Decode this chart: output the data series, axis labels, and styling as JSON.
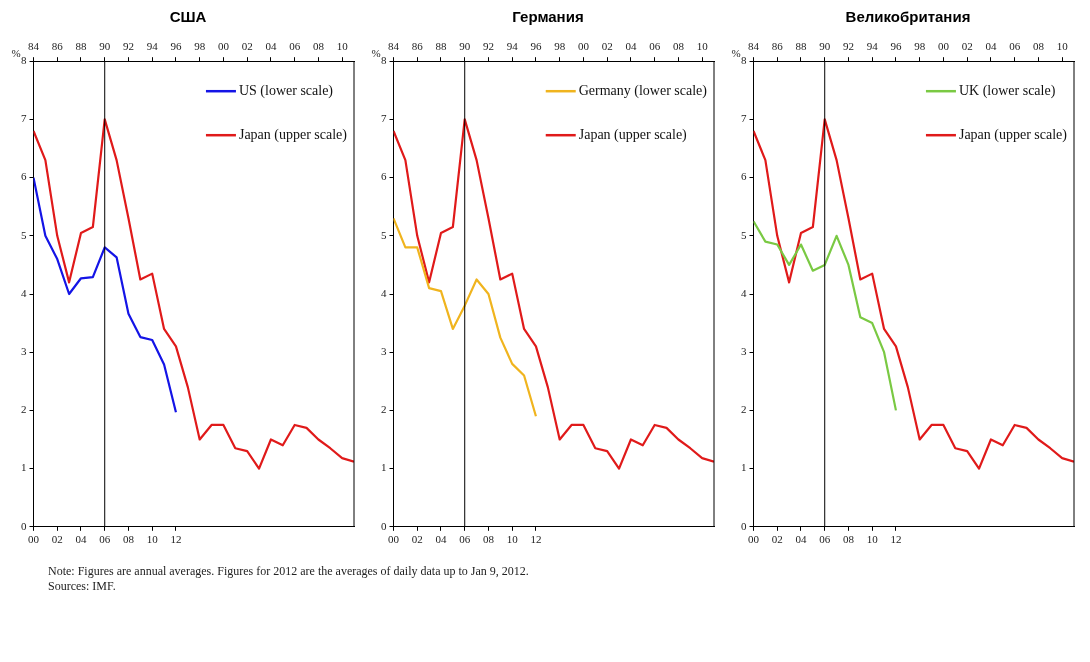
{
  "chart_data": [
    {
      "type": "line",
      "title": "США",
      "ylabel": "%",
      "legend": "top right",
      "ylim": [
        0,
        8
      ],
      "yticks": [
        0,
        1,
        2,
        3,
        4,
        5,
        6,
        7,
        8
      ],
      "xlim": [
        2000,
        2027
      ],
      "xticks": [
        {
          "value": 2000,
          "label": "00"
        },
        {
          "value": 2002,
          "label": "02"
        },
        {
          "value": 2004,
          "label": "04"
        },
        {
          "value": 2006,
          "label": "06"
        },
        {
          "value": 2008,
          "label": "08"
        },
        {
          "value": 2010,
          "label": "10"
        },
        {
          "value": 2012,
          "label": "12"
        }
      ],
      "x2lim": [
        1984,
        2011
      ],
      "x2ticks": [
        {
          "value": 1984,
          "label": "84"
        },
        {
          "value": 1986,
          "label": "86"
        },
        {
          "value": 1988,
          "label": "88"
        },
        {
          "value": 1990,
          "label": "90"
        },
        {
          "value": 1992,
          "label": "92"
        },
        {
          "value": 1994,
          "label": "94"
        },
        {
          "value": 1996,
          "label": "96"
        },
        {
          "value": 1998,
          "label": "98"
        },
        {
          "value": 2000,
          "label": "00"
        },
        {
          "value": 2002,
          "label": "02"
        },
        {
          "value": 2004,
          "label": "04"
        },
        {
          "value": 2006,
          "label": "06"
        },
        {
          "value": 2008,
          "label": "08"
        },
        {
          "value": 2010,
          "label": "10"
        }
      ],
      "ref_lines": [
        {
          "axis": "x",
          "value": 2006,
          "color": "#000000"
        }
      ],
      "annotations": [
        "Note: Figures are annual averages. Figures for 2012 are the averages of daily data up to Jan 9, 2012.",
        "Sources: IMF."
      ],
      "series": [
        {
          "name": "US (lower scale)",
          "color": "#1414e6",
          "x": [
            2000,
            2001,
            2002,
            2003,
            2004,
            2005,
            2006,
            2007,
            2008,
            2009,
            2010,
            2011,
            2012
          ],
          "values": [
            6.0,
            5.0,
            4.6,
            4.0,
            4.27,
            4.29,
            4.8,
            4.63,
            3.66,
            3.26,
            3.21,
            2.79,
            1.97
          ]
        },
        {
          "name": "Japan (upper scale)",
          "color": "#e01a1a",
          "axis": "x2",
          "x": [
            1984,
            1985,
            1986,
            1987,
            1988,
            1989,
            1990,
            1991,
            1992,
            1993,
            1994,
            1995,
            1996,
            1997,
            1998,
            1999,
            2000,
            2001,
            2002,
            2003,
            2004,
            2005,
            2006,
            2007,
            2008,
            2009,
            2010,
            2011
          ],
          "values": [
            6.8,
            6.3,
            5.0,
            4.2,
            5.05,
            5.15,
            7.0,
            6.3,
            5.3,
            4.25,
            4.35,
            3.4,
            3.1,
            2.4,
            1.5,
            1.75,
            1.75,
            1.35,
            1.3,
            1.0,
            1.5,
            1.4,
            1.75,
            1.7,
            1.5,
            1.35,
            1.18,
            1.12
          ]
        }
      ]
    },
    {
      "type": "line",
      "title": "Германия",
      "ylabel": "%",
      "legend": "top right",
      "ylim": [
        0,
        8
      ],
      "yticks": [
        0,
        1,
        2,
        3,
        4,
        5,
        6,
        7,
        8
      ],
      "xlim": [
        2000,
        2027
      ],
      "xticks": [
        {
          "value": 2000,
          "label": "00"
        },
        {
          "value": 2002,
          "label": "02"
        },
        {
          "value": 2004,
          "label": "04"
        },
        {
          "value": 2006,
          "label": "06"
        },
        {
          "value": 2008,
          "label": "08"
        },
        {
          "value": 2010,
          "label": "10"
        },
        {
          "value": 2012,
          "label": "12"
        }
      ],
      "x2lim": [
        1984,
        2011
      ],
      "x2ticks": [
        {
          "value": 1984,
          "label": "84"
        },
        {
          "value": 1986,
          "label": "86"
        },
        {
          "value": 1988,
          "label": "88"
        },
        {
          "value": 1990,
          "label": "90"
        },
        {
          "value": 1992,
          "label": "92"
        },
        {
          "value": 1994,
          "label": "94"
        },
        {
          "value": 1996,
          "label": "96"
        },
        {
          "value": 1998,
          "label": "98"
        },
        {
          "value": 2000,
          "label": "00"
        },
        {
          "value": 2002,
          "label": "02"
        },
        {
          "value": 2004,
          "label": "04"
        },
        {
          "value": 2006,
          "label": "06"
        },
        {
          "value": 2008,
          "label": "08"
        },
        {
          "value": 2010,
          "label": "10"
        }
      ],
      "ref_lines": [
        {
          "axis": "x",
          "value": 2006,
          "color": "#000000"
        }
      ],
      "series": [
        {
          "name": "Germany (lower scale)",
          "color": "#f0b41e",
          "x": [
            2000,
            2001,
            2002,
            2003,
            2004,
            2005,
            2006,
            2007,
            2008,
            2009,
            2010,
            2011,
            2012
          ],
          "values": [
            5.3,
            4.8,
            4.8,
            4.1,
            4.05,
            3.4,
            3.8,
            4.25,
            4.0,
            3.25,
            2.8,
            2.6,
            1.9
          ]
        },
        {
          "name": "Japan (upper scale)",
          "color": "#e01a1a",
          "axis": "x2",
          "x": [
            1984,
            1985,
            1986,
            1987,
            1988,
            1989,
            1990,
            1991,
            1992,
            1993,
            1994,
            1995,
            1996,
            1997,
            1998,
            1999,
            2000,
            2001,
            2002,
            2003,
            2004,
            2005,
            2006,
            2007,
            2008,
            2009,
            2010,
            2011
          ],
          "values": [
            6.8,
            6.3,
            5.0,
            4.2,
            5.05,
            5.15,
            7.0,
            6.3,
            5.3,
            4.25,
            4.35,
            3.4,
            3.1,
            2.4,
            1.5,
            1.75,
            1.75,
            1.35,
            1.3,
            1.0,
            1.5,
            1.4,
            1.75,
            1.7,
            1.5,
            1.35,
            1.18,
            1.12
          ]
        }
      ]
    },
    {
      "type": "line",
      "title": "Великобритания",
      "ylabel": "%",
      "legend": "top right",
      "ylim": [
        0,
        8
      ],
      "yticks": [
        0,
        1,
        2,
        3,
        4,
        5,
        6,
        7,
        8
      ],
      "xlim": [
        2000,
        2027
      ],
      "xticks": [
        {
          "value": 2000,
          "label": "00"
        },
        {
          "value": 2002,
          "label": "02"
        },
        {
          "value": 2004,
          "label": "04"
        },
        {
          "value": 2006,
          "label": "06"
        },
        {
          "value": 2008,
          "label": "08"
        },
        {
          "value": 2010,
          "label": "10"
        },
        {
          "value": 2012,
          "label": "12"
        }
      ],
      "x2lim": [
        1984,
        2011
      ],
      "x2ticks": [
        {
          "value": 1984,
          "label": "84"
        },
        {
          "value": 1986,
          "label": "86"
        },
        {
          "value": 1988,
          "label": "88"
        },
        {
          "value": 1990,
          "label": "90"
        },
        {
          "value": 1992,
          "label": "92"
        },
        {
          "value": 1994,
          "label": "94"
        },
        {
          "value": 1996,
          "label": "96"
        },
        {
          "value": 1998,
          "label": "98"
        },
        {
          "value": 2000,
          "label": "00"
        },
        {
          "value": 2002,
          "label": "02"
        },
        {
          "value": 2004,
          "label": "04"
        },
        {
          "value": 2006,
          "label": "06"
        },
        {
          "value": 2008,
          "label": "08"
        },
        {
          "value": 2010,
          "label": "10"
        }
      ],
      "ref_lines": [
        {
          "axis": "x",
          "value": 2006,
          "color": "#000000"
        }
      ],
      "series": [
        {
          "name": "UK (lower scale)",
          "color": "#7ac943",
          "x": [
            2000,
            2001,
            2002,
            2003,
            2004,
            2005,
            2006,
            2007,
            2008,
            2009,
            2010,
            2011,
            2012
          ],
          "values": [
            5.25,
            4.9,
            4.85,
            4.5,
            4.85,
            4.4,
            4.5,
            5.0,
            4.5,
            3.6,
            3.5,
            3.0,
            2.0
          ]
        },
        {
          "name": "Japan (upper scale)",
          "color": "#e01a1a",
          "axis": "x2",
          "x": [
            1984,
            1985,
            1986,
            1987,
            1988,
            1989,
            1990,
            1991,
            1992,
            1993,
            1994,
            1995,
            1996,
            1997,
            1998,
            1999,
            2000,
            2001,
            2002,
            2003,
            2004,
            2005,
            2006,
            2007,
            2008,
            2009,
            2010,
            2011
          ],
          "values": [
            6.8,
            6.3,
            5.0,
            4.2,
            5.05,
            5.15,
            7.0,
            6.3,
            5.3,
            4.25,
            4.35,
            3.4,
            3.1,
            2.4,
            1.5,
            1.75,
            1.75,
            1.35,
            1.3,
            1.0,
            1.5,
            1.4,
            1.75,
            1.7,
            1.5,
            1.35,
            1.18,
            1.12
          ]
        }
      ]
    }
  ]
}
